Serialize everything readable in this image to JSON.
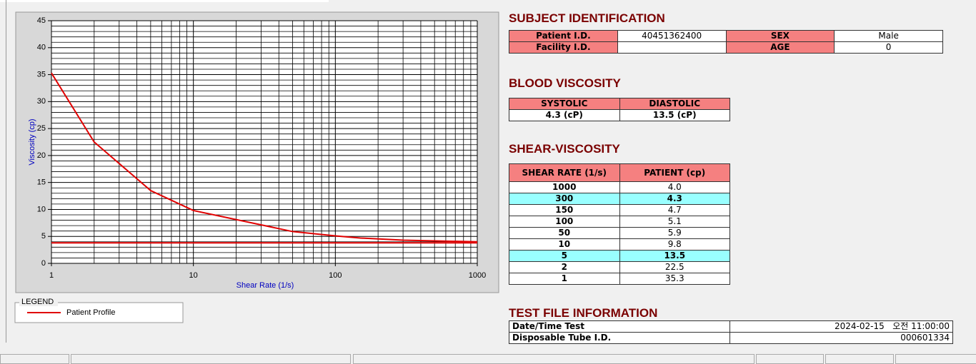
{
  "chart_data": {
    "type": "line",
    "xlabel": "Shear Rate (1/s)",
    "ylabel": "Viscosity (cp)",
    "xscale": "log",
    "xlim": [
      1,
      1000
    ],
    "xticks": [
      1,
      10,
      100,
      1000
    ],
    "ylim": [
      0,
      45
    ],
    "yticks": [
      0,
      5,
      10,
      15,
      20,
      25,
      30,
      35,
      40,
      45
    ],
    "grid": true,
    "minor_grid": true,
    "series": [
      {
        "name": "Patient Profile",
        "color": "#e00000",
        "x": [
          1,
          2,
          5,
          10,
          50,
          100,
          150,
          300,
          1000
        ],
        "values": [
          35.3,
          22.5,
          13.5,
          9.8,
          5.9,
          5.1,
          4.7,
          4.3,
          4.0
        ]
      },
      {
        "color": "#e00000",
        "x": [
          1,
          1000
        ],
        "values": [
          3.8,
          3.8
        ]
      }
    ],
    "legend_title": "LEGEND"
  },
  "subject": {
    "title": "SUBJECT IDENTIFICATION",
    "rows": [
      [
        {
          "label": "Patient I.D.",
          "value": "40451362400"
        },
        {
          "label": "SEX",
          "value": "Male"
        }
      ],
      [
        {
          "label": "Facility I.D."
        },
        {
          "label": "AGE",
          "value": "0"
        }
      ]
    ]
  },
  "blood": {
    "title": "BLOOD VISCOSITY",
    "headers": [
      "SYSTOLIC",
      "DIASTOLIC"
    ],
    "values": [
      "4.3 (cP)",
      "13.5 (cP)"
    ]
  },
  "shear": {
    "title": "SHEAR-VISCOSITY",
    "headers": [
      "SHEAR RATE (1/s)",
      "PATIENT (cp)"
    ],
    "rows": [
      {
        "rate": "1000",
        "patient": "4.0"
      },
      {
        "rate": "300",
        "patient": "4.3",
        "highlight": true
      },
      {
        "rate": "150",
        "patient": "4.7"
      },
      {
        "rate": "100",
        "patient": "5.1"
      },
      {
        "rate": "50",
        "patient": "5.9"
      },
      {
        "rate": "10",
        "patient": "9.8"
      },
      {
        "rate": "5",
        "patient": "13.5",
        "highlight": true
      },
      {
        "rate": "2",
        "patient": "22.5"
      },
      {
        "rate": "1",
        "patient": "35.3"
      }
    ]
  },
  "test_file": {
    "title": "TEST FILE INFORMATION",
    "rows": [
      {
        "label": "Date/Time Test",
        "value": "2024-02-15   오전 11:00:00"
      },
      {
        "label": "Disposable Tube I.D.",
        "value": "000601334"
      }
    ]
  }
}
